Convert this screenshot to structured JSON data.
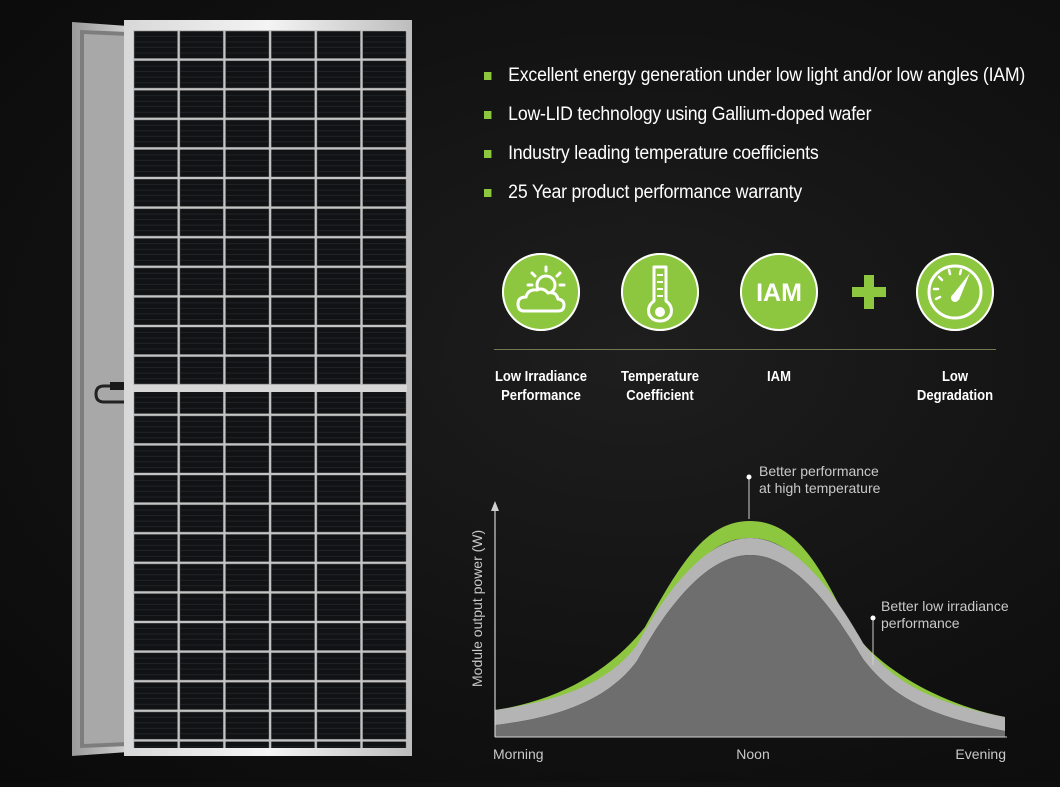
{
  "bullets": [
    "Excellent energy generation under low light and/or low angles (IAM)",
    "Low-LID technology using Gallium-doped wafer",
    "Industry leading temperature coefficients",
    "25 Year product performance warranty"
  ],
  "features": [
    {
      "label": "Low Irradiance\nPerformance",
      "icon": "sun-cloud-icon"
    },
    {
      "label": "Temperature\nCoefficient",
      "icon": "thermometer-icon"
    },
    {
      "label": "IAM",
      "icon": "iam-icon",
      "icon_text": "IAM"
    },
    {
      "label": "Low\nDegradation",
      "icon": "gauge-icon"
    }
  ],
  "plus_icon": "plus-icon",
  "accent_color": "#8dc63f",
  "chart": {
    "ylabel": "Module output power (W)",
    "x_labels": [
      "Morning",
      "Noon",
      "Evening"
    ],
    "annotations": [
      {
        "lines": [
          "Better performance",
          "at high temperature"
        ]
      },
      {
        "lines": [
          "Better low irradiance",
          "performance"
        ]
      }
    ],
    "colors": {
      "highlight": "#8dc63f",
      "band": "#b4b4b4",
      "fill": "#6e6e6e"
    }
  }
}
